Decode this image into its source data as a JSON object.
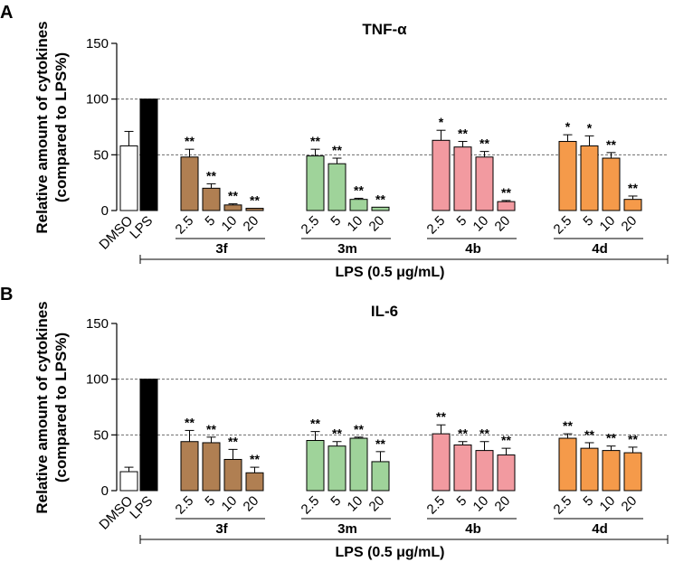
{
  "chart_data": [
    {
      "type": "bar",
      "panel_letter": "A",
      "title": "TNF-α",
      "ylabel_line1": "Relative amount of cytokines",
      "ylabel_line2": "(compared to LPS%)",
      "ylim": [
        0,
        150
      ],
      "yticks": [
        "0",
        "50",
        "100",
        "150"
      ],
      "reference_lines": [
        50,
        100
      ],
      "control_categories": [
        "DMSO",
        "LPS"
      ],
      "controls": [
        {
          "name": "DMSO",
          "value": 58,
          "error": 13,
          "fill": "#ffffff"
        },
        {
          "name": "LPS",
          "value": 100,
          "error": 0,
          "fill": "#000000"
        }
      ],
      "dose_labels": [
        "2.5",
        "5",
        "10",
        "20"
      ],
      "groups": [
        {
          "name": "3f",
          "color": "#b07f52",
          "values": [
            48,
            20,
            5,
            2
          ],
          "errors": [
            7,
            4,
            1,
            0
          ],
          "sig": [
            "**",
            "**",
            "**",
            "**"
          ]
        },
        {
          "name": "3m",
          "color": "#9fd39a",
          "values": [
            49,
            42,
            10,
            3
          ],
          "errors": [
            6,
            5,
            1,
            0
          ],
          "sig": [
            "**",
            "**",
            "**",
            "**"
          ]
        },
        {
          "name": "4b",
          "color": "#f29aa0",
          "values": [
            63,
            57,
            48,
            8
          ],
          "errors": [
            9,
            5,
            5,
            1
          ],
          "sig": [
            "*",
            "**",
            "**",
            "**"
          ]
        },
        {
          "name": "4d",
          "color": "#f59a4a",
          "values": [
            62,
            58,
            47,
            10
          ],
          "errors": [
            6,
            9,
            5,
            3
          ],
          "sig": [
            "*",
            "*",
            "**",
            "**"
          ]
        }
      ],
      "bracket_label": "LPS (0.5 μg/mL)"
    },
    {
      "type": "bar",
      "panel_letter": "B",
      "title": "IL-6",
      "ylabel_line1": "Relative amount of cytokines",
      "ylabel_line2": "(compared to LPS%)",
      "ylim": [
        0,
        150
      ],
      "yticks": [
        "0",
        "50",
        "100",
        "150"
      ],
      "reference_lines": [
        50,
        100
      ],
      "control_categories": [
        "DMSO",
        "LPS"
      ],
      "controls": [
        {
          "name": "DMSO",
          "value": 17,
          "error": 4,
          "fill": "#ffffff"
        },
        {
          "name": "LPS",
          "value": 100,
          "error": 0,
          "fill": "#000000"
        }
      ],
      "dose_labels": [
        "2.5",
        "5",
        "10",
        "20"
      ],
      "groups": [
        {
          "name": "3f",
          "color": "#b07f52",
          "values": [
            44,
            43,
            28,
            16
          ],
          "errors": [
            10,
            5,
            9,
            5
          ],
          "sig": [
            "**",
            "**",
            "**",
            "**"
          ]
        },
        {
          "name": "3m",
          "color": "#9fd39a",
          "values": [
            45,
            40,
            47,
            26
          ],
          "errors": [
            8,
            4,
            1,
            9
          ],
          "sig": [
            "**",
            "**",
            "**",
            "**"
          ]
        },
        {
          "name": "4b",
          "color": "#f29aa0",
          "values": [
            51,
            41,
            36,
            32
          ],
          "errors": [
            8,
            3,
            8,
            6
          ],
          "sig": [
            "**",
            "**",
            "**",
            "**"
          ]
        },
        {
          "name": "4d",
          "color": "#f59a4a",
          "values": [
            47,
            38,
            36,
            34
          ],
          "errors": [
            4,
            5,
            4,
            5
          ],
          "sig": [
            "**",
            "**",
            "**",
            "**"
          ]
        }
      ],
      "bracket_label": "LPS (0.5 μg/mL)"
    }
  ]
}
